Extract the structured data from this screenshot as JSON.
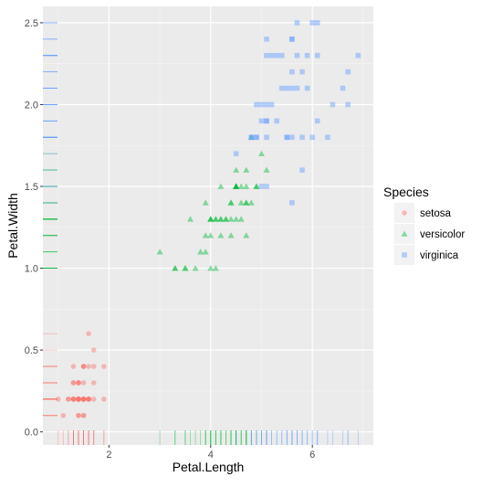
{
  "chart_data": {
    "type": "scatter",
    "xlabel": "Petal.Length",
    "ylabel": "Petal.Width",
    "xlim": [
      0.7,
      7.2
    ],
    "ylim": [
      -0.08,
      2.6
    ],
    "x_ticks": [
      2,
      4,
      6
    ],
    "x_tick_labels": [
      "2",
      "4",
      "6"
    ],
    "y_ticks": [
      0.0,
      0.5,
      1.0,
      1.5,
      2.0,
      2.5
    ],
    "y_tick_labels": [
      "0.0",
      "0.5",
      "1.0",
      "1.5",
      "2.0",
      "2.5"
    ],
    "grid": true,
    "rug": true,
    "legend": {
      "title": "Species",
      "position": "right",
      "entries": [
        "setosa",
        "versicolor",
        "virginica"
      ]
    },
    "series": [
      {
        "name": "setosa",
        "shape": "circle",
        "color": "#F8766D",
        "x": [
          1.4,
          1.4,
          1.3,
          1.5,
          1.4,
          1.7,
          1.4,
          1.5,
          1.4,
          1.5,
          1.5,
          1.6,
          1.4,
          1.1,
          1.2,
          1.5,
          1.3,
          1.4,
          1.7,
          1.5,
          1.7,
          1.5,
          1.0,
          1.7,
          1.9,
          1.6,
          1.6,
          1.5,
          1.4,
          1.6,
          1.6,
          1.5,
          1.5,
          1.4,
          1.5,
          1.2,
          1.3,
          1.4,
          1.3,
          1.5,
          1.3,
          1.3,
          1.3,
          1.6,
          1.9,
          1.4,
          1.6,
          1.4,
          1.5,
          1.4
        ],
        "y": [
          0.2,
          0.2,
          0.2,
          0.2,
          0.2,
          0.4,
          0.3,
          0.2,
          0.2,
          0.1,
          0.2,
          0.2,
          0.1,
          0.1,
          0.2,
          0.4,
          0.4,
          0.3,
          0.3,
          0.3,
          0.2,
          0.4,
          0.2,
          0.5,
          0.2,
          0.2,
          0.4,
          0.2,
          0.2,
          0.2,
          0.2,
          0.4,
          0.1,
          0.2,
          0.2,
          0.2,
          0.2,
          0.1,
          0.2,
          0.2,
          0.3,
          0.3,
          0.2,
          0.6,
          0.4,
          0.3,
          0.2,
          0.2,
          0.2,
          0.2
        ]
      },
      {
        "name": "versicolor",
        "shape": "triangle",
        "color": "#00BA38",
        "x": [
          4.7,
          4.5,
          4.9,
          4.0,
          4.6,
          4.5,
          4.7,
          3.3,
          4.6,
          3.9,
          3.5,
          4.2,
          4.0,
          4.7,
          3.6,
          4.4,
          4.5,
          4.1,
          4.5,
          3.9,
          4.8,
          4.0,
          4.9,
          4.7,
          4.3,
          4.4,
          4.8,
          5.0,
          4.5,
          3.5,
          3.8,
          3.7,
          3.9,
          5.1,
          4.5,
          4.5,
          4.7,
          4.4,
          4.1,
          4.0,
          4.4,
          4.6,
          4.0,
          3.3,
          4.2,
          4.2,
          4.2,
          4.3,
          3.0,
          4.1
        ],
        "y": [
          1.4,
          1.5,
          1.5,
          1.3,
          1.5,
          1.3,
          1.6,
          1.0,
          1.3,
          1.4,
          1.0,
          1.5,
          1.0,
          1.4,
          1.3,
          1.4,
          1.5,
          1.0,
          1.5,
          1.1,
          1.8,
          1.3,
          1.5,
          1.2,
          1.3,
          1.4,
          1.4,
          1.7,
          1.5,
          1.0,
          1.1,
          1.0,
          1.2,
          1.6,
          1.5,
          1.6,
          1.5,
          1.3,
          1.3,
          1.3,
          1.2,
          1.4,
          1.2,
          1.0,
          1.3,
          1.2,
          1.3,
          1.3,
          1.1,
          1.3
        ]
      },
      {
        "name": "virginica",
        "shape": "square",
        "color": "#619CFF",
        "x": [
          6.0,
          5.1,
          5.9,
          5.6,
          5.8,
          6.6,
          4.5,
          6.3,
          5.8,
          6.1,
          5.1,
          5.3,
          5.5,
          5.0,
          5.1,
          5.3,
          5.5,
          6.7,
          6.9,
          5.0,
          5.7,
          4.9,
          6.7,
          4.9,
          5.7,
          6.0,
          4.8,
          4.9,
          5.6,
          5.8,
          6.1,
          6.4,
          5.6,
          5.1,
          5.6,
          6.1,
          5.6,
          5.5,
          4.8,
          5.4,
          5.6,
          5.1,
          5.1,
          5.9,
          5.7,
          5.2,
          5.0,
          5.2,
          5.4,
          5.1
        ],
        "y": [
          2.5,
          1.9,
          2.1,
          1.8,
          2.2,
          2.1,
          1.7,
          1.8,
          1.8,
          2.5,
          2.0,
          1.9,
          2.1,
          2.0,
          2.4,
          2.3,
          1.8,
          2.2,
          2.3,
          1.5,
          2.3,
          2.0,
          2.0,
          1.8,
          2.1,
          1.8,
          1.8,
          1.8,
          2.1,
          1.6,
          1.9,
          2.0,
          2.2,
          1.5,
          1.4,
          2.3,
          2.4,
          1.8,
          1.8,
          2.1,
          2.4,
          2.3,
          1.9,
          2.3,
          2.5,
          2.3,
          1.9,
          2.0,
          2.3,
          1.8
        ]
      }
    ]
  }
}
